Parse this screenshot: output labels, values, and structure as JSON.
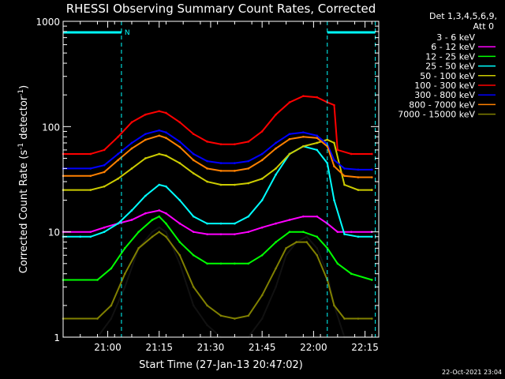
{
  "chart_data": {
    "type": "line",
    "title": "RHESSI Observing Summary Count Rates, Corrected",
    "xlabel": "Start Time (27-Jan-13 20:47:02)",
    "ylabel_main": "Corrected Count Rate (s",
    "ylabel_sup1": "-1",
    "ylabel_mid": " detector",
    "ylabel_sup2": "-1",
    "ylabel_end": ")",
    "y_scale": "log",
    "ylim": [
      1,
      1000
    ],
    "xlim_minutes": [
      0,
      92
    ],
    "x_ticks": [
      {
        "label": "21:00",
        "minutes": 13
      },
      {
        "label": "21:15",
        "minutes": 28
      },
      {
        "label": "21:30",
        "minutes": 43
      },
      {
        "label": "21:45",
        "minutes": 58
      },
      {
        "label": "22:00",
        "minutes": 73
      },
      {
        "label": "22:15",
        "minutes": 88
      }
    ],
    "y_ticks": [
      {
        "label": "1",
        "value": 1
      },
      {
        "label": "10",
        "value": 10
      },
      {
        "label": "100",
        "value": 100
      },
      {
        "label": "1000",
        "value": 1000
      }
    ],
    "legend_header": [
      "Det 1,3,4,5,6,9,",
      "Att 0"
    ],
    "legend_position": "right",
    "night_marker": "N",
    "night_intervals_minutes": [
      [
        0,
        17
      ],
      [
        77,
        91
      ]
    ],
    "series": [
      {
        "name": "3 - 6 keV",
        "color": "#000000",
        "x": [
          0,
          10,
          14,
          18,
          22,
          26,
          28,
          30,
          34,
          38,
          42,
          46,
          50,
          54,
          58,
          62,
          65,
          68,
          71,
          74,
          77,
          79,
          82,
          86,
          90
        ],
        "y": [
          1,
          1,
          1.5,
          3,
          7,
          10,
          11,
          10,
          5,
          2,
          1.3,
          1,
          1,
          1,
          1.5,
          3,
          6,
          8,
          9,
          7,
          4,
          2,
          1,
          1,
          1
        ]
      },
      {
        "name": "6 - 12 keV",
        "color": "#ff00ff",
        "x": [
          0,
          8,
          12,
          16,
          20,
          24,
          28,
          30,
          34,
          38,
          42,
          46,
          50,
          54,
          58,
          62,
          66,
          70,
          74,
          77,
          80,
          84,
          90
        ],
        "y": [
          10,
          10,
          11,
          12,
          13,
          15,
          16,
          15,
          12,
          10,
          9.5,
          9.5,
          9.5,
          10,
          11,
          12,
          13,
          14,
          14,
          12,
          10,
          10,
          10
        ]
      },
      {
        "name": "12 - 25 keV",
        "color": "#00ff00",
        "x": [
          0,
          10,
          14,
          18,
          22,
          26,
          28,
          30,
          34,
          38,
          42,
          46,
          50,
          54,
          58,
          62,
          66,
          70,
          74,
          77,
          80,
          84,
          90
        ],
        "y": [
          3.5,
          3.5,
          4.5,
          7,
          10,
          13,
          14,
          12,
          8,
          6,
          5,
          5,
          5,
          5,
          6,
          8,
          10,
          10,
          9,
          7,
          5,
          4,
          3.5
        ]
      },
      {
        "name": "25 - 50 keV",
        "color": "#00ffff",
        "x": [
          0,
          5,
          8,
          12,
          16,
          20,
          24,
          28,
          30,
          34,
          38,
          42,
          46,
          50,
          54,
          58,
          62,
          66,
          70,
          74,
          77,
          79,
          82,
          86,
          90
        ],
        "y": [
          9,
          9,
          9,
          10,
          12,
          16,
          22,
          28,
          27,
          20,
          14,
          12,
          12,
          12,
          14,
          20,
          35,
          55,
          65,
          60,
          45,
          20,
          9.5,
          9,
          9
        ]
      },
      {
        "name": "50 - 100 keV",
        "color": "#cccc00",
        "x": [
          0,
          8,
          12,
          16,
          20,
          24,
          28,
          30,
          34,
          38,
          42,
          46,
          50,
          54,
          58,
          62,
          66,
          70,
          74,
          77,
          79,
          82,
          86,
          90
        ],
        "y": [
          25,
          25,
          27,
          32,
          40,
          50,
          55,
          53,
          45,
          36,
          30,
          28,
          28,
          29,
          32,
          40,
          55,
          65,
          70,
          75,
          70,
          28,
          25,
          25
        ]
      },
      {
        "name": "100 - 300 keV",
        "color": "#ff0000",
        "x": [
          0,
          8,
          12,
          16,
          20,
          24,
          28,
          30,
          34,
          38,
          42,
          46,
          50,
          54,
          58,
          62,
          66,
          70,
          74,
          77,
          79,
          80,
          84,
          90
        ],
        "y": [
          55,
          55,
          60,
          80,
          110,
          130,
          140,
          135,
          110,
          85,
          72,
          68,
          68,
          72,
          90,
          130,
          170,
          195,
          190,
          170,
          160,
          60,
          55,
          55
        ]
      },
      {
        "name": "300 - 800 keV",
        "color": "#0000ff",
        "x": [
          0,
          8,
          12,
          16,
          20,
          24,
          28,
          30,
          34,
          38,
          42,
          46,
          50,
          54,
          58,
          62,
          66,
          70,
          74,
          77,
          79,
          82,
          86,
          90
        ],
        "y": [
          40,
          40,
          43,
          55,
          70,
          85,
          92,
          88,
          72,
          55,
          47,
          45,
          45,
          47,
          55,
          70,
          85,
          88,
          82,
          68,
          48,
          40,
          39,
          39
        ]
      },
      {
        "name": "800 - 7000 keV",
        "color": "#ff8000",
        "x": [
          0,
          8,
          12,
          16,
          20,
          24,
          28,
          30,
          34,
          38,
          42,
          46,
          50,
          54,
          58,
          62,
          66,
          70,
          74,
          77,
          79,
          82,
          86,
          90
        ],
        "y": [
          34,
          34,
          37,
          48,
          62,
          75,
          82,
          78,
          64,
          48,
          40,
          38,
          38,
          40,
          48,
          62,
          76,
          80,
          78,
          65,
          42,
          34,
          33,
          33
        ]
      },
      {
        "name": "7000 - 15000 keV",
        "color": "#808000",
        "x": [
          0,
          10,
          14,
          18,
          22,
          26,
          28,
          30,
          34,
          38,
          42,
          46,
          50,
          54,
          58,
          62,
          65,
          68,
          71,
          74,
          77,
          79,
          82,
          86,
          90
        ],
        "y": [
          1.5,
          1.5,
          2,
          4,
          7,
          9,
          10,
          9,
          6,
          3,
          2,
          1.6,
          1.5,
          1.6,
          2.5,
          4.5,
          7,
          8,
          8,
          6,
          3.5,
          2,
          1.5,
          1.5,
          1.5
        ]
      }
    ],
    "grid": false
  },
  "footer_timestamp": "22-Oct-2021 23:04"
}
